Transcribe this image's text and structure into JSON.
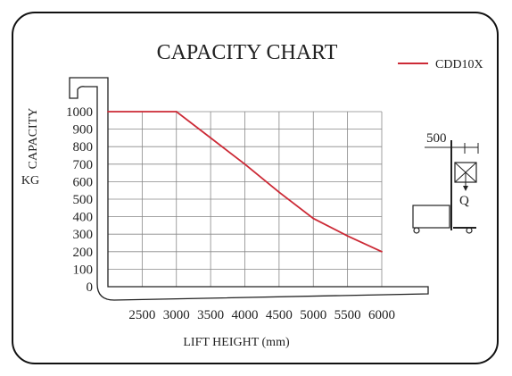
{
  "chart_data": {
    "type": "line",
    "title": "CAPACITY CHART",
    "ylabel_line1": "CAPACITY",
    "ylabel_line2": "KG",
    "xlabel": "LIFT HEIGHT (mm)",
    "x_ticks": [
      "2500",
      "3000",
      "3500",
      "4000",
      "4500",
      "5000",
      "5500",
      "6000"
    ],
    "y_ticks": [
      "0",
      "100",
      "200",
      "300",
      "400",
      "500",
      "600",
      "700",
      "800",
      "900",
      "1000"
    ],
    "xlim": [
      2000,
      6000
    ],
    "ylim": [
      0,
      1000
    ],
    "grid": true,
    "legend_position": "top-right",
    "series": [
      {
        "name": "CDD10X",
        "color": "#cc2a36",
        "x": [
          2000,
          3000,
          3500,
          4000,
          4500,
          5000,
          5500,
          6000
        ],
        "y": [
          1000,
          1000,
          850,
          700,
          540,
          390,
          290,
          200
        ]
      }
    ],
    "diagram": {
      "dimension_label": "500",
      "load_label": "Q"
    }
  }
}
